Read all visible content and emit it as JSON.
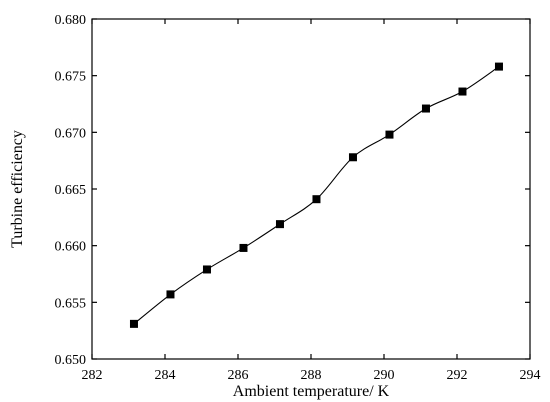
{
  "chart_data": {
    "type": "line",
    "title": "",
    "xlabel": "Ambient temperature/ K",
    "ylabel": "Turbine efficiency",
    "xlim": [
      282,
      294
    ],
    "ylim": [
      0.65,
      0.68
    ],
    "xticks": [
      282,
      284,
      286,
      288,
      290,
      292,
      294
    ],
    "yticks": [
      0.65,
      0.655,
      0.66,
      0.665,
      0.67,
      0.675,
      0.68
    ],
    "xtick_labels": [
      "282",
      "284",
      "286",
      "288",
      "290",
      "292",
      "294"
    ],
    "ytick_labels": [
      "0.650",
      "0.655",
      "0.660",
      "0.665",
      "0.670",
      "0.675",
      "0.680"
    ],
    "grid": false,
    "legend": "none",
    "marker": "square",
    "line_color": "#000000",
    "series": [
      {
        "x": [
          283.15,
          284.15,
          285.15,
          286.15,
          287.15,
          288.15,
          289.15,
          290.15,
          291.15,
          292.15,
          293.15
        ],
        "y": [
          0.6531,
          0.6557,
          0.6579,
          0.6598,
          0.6619,
          0.6641,
          0.6678,
          0.6698,
          0.6721,
          0.6736,
          0.6758
        ]
      }
    ]
  }
}
